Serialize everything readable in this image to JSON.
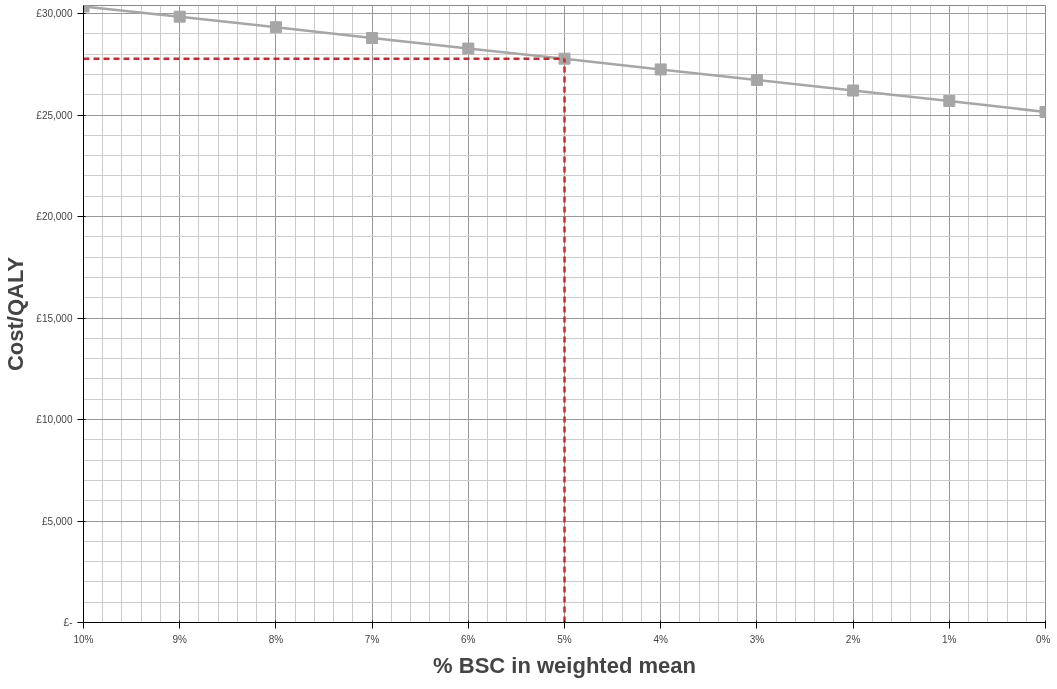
{
  "chart_data": {
    "type": "line",
    "xlabel": "% BSC in weighted mean",
    "ylabel": "Cost/QALY",
    "categories": [
      "10%",
      "9%",
      "8%",
      "7%",
      "6%",
      "5%",
      "4%",
      "3%",
      "2%",
      "1%",
      "0%"
    ],
    "series": [
      {
        "color": "#a6a6a6",
        "values": [
          30350,
          29850,
          29330,
          28800,
          28280,
          27780,
          27250,
          26730,
          26210,
          25700,
          25150
        ]
      }
    ],
    "ylim": [
      0,
      30400
    ],
    "yticks": [
      {
        "value": 0,
        "label": "£-"
      },
      {
        "value": 5000,
        "label": "£5,000"
      },
      {
        "value": 10000,
        "label": "£10,000"
      },
      {
        "value": 15000,
        "label": "£15,000"
      },
      {
        "value": 20000,
        "label": "£20,000"
      },
      {
        "value": 25000,
        "label": "£25,000"
      },
      {
        "value": 30000,
        "label": "£30,000"
      }
    ],
    "ref_lines": [
      {
        "axis": "y",
        "value": 27780,
        "color": "#e02020",
        "line_style": "dashed"
      },
      {
        "axis": "x",
        "value": "5%",
        "color": "#e02020",
        "line_style": "dashed"
      }
    ],
    "grid": true,
    "marker": "square",
    "line_style": "solid"
  }
}
